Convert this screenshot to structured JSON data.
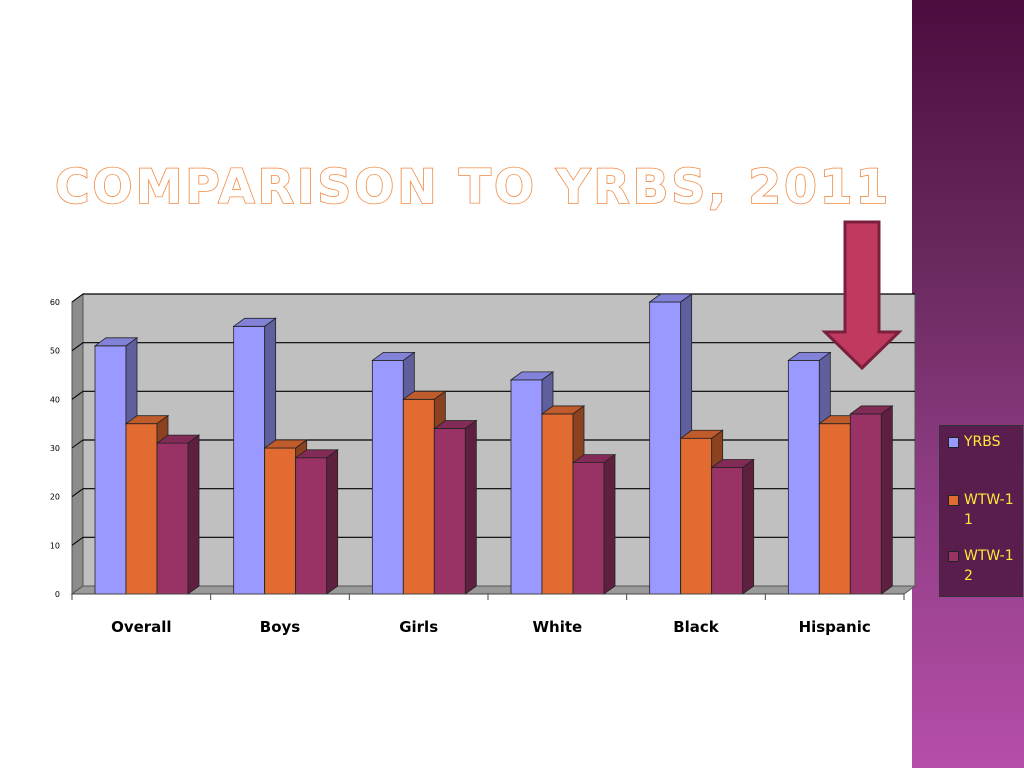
{
  "slide": {
    "title": "Comparison to YRBS, 2011"
  },
  "colors": {
    "YRBS": "#9999ff",
    "WTW-11": "#e26b32",
    "WTW-12": "#993366",
    "title_outline": "#ef7b2c",
    "arrow": "#c0395e"
  },
  "chart_data": {
    "type": "bar",
    "categories": [
      "Overall",
      "Boys",
      "Girls",
      "White",
      "Black",
      "Hispanic"
    ],
    "series": [
      {
        "name": "YRBS",
        "values": [
          51,
          55,
          48,
          44,
          60,
          48
        ]
      },
      {
        "name": "WTW-11",
        "values": [
          35,
          30,
          40,
          37,
          32,
          35
        ]
      },
      {
        "name": "WTW-12",
        "values": [
          31,
          28,
          34,
          27,
          26,
          37
        ]
      }
    ],
    "ylim": [
      0,
      60
    ],
    "yticks": [
      "0",
      "10",
      "20",
      "30",
      "40",
      "50",
      "60"
    ],
    "grid": true,
    "legend_position": "right",
    "annotation": "down-arrow-pointing-at-hispanic"
  },
  "legend": {
    "items": [
      {
        "label": "YRBS",
        "color": "#9999ff"
      },
      {
        "label": "WTW-11",
        "color": "#e26b32"
      },
      {
        "label": "WTW-12",
        "color": "#993366"
      }
    ]
  }
}
